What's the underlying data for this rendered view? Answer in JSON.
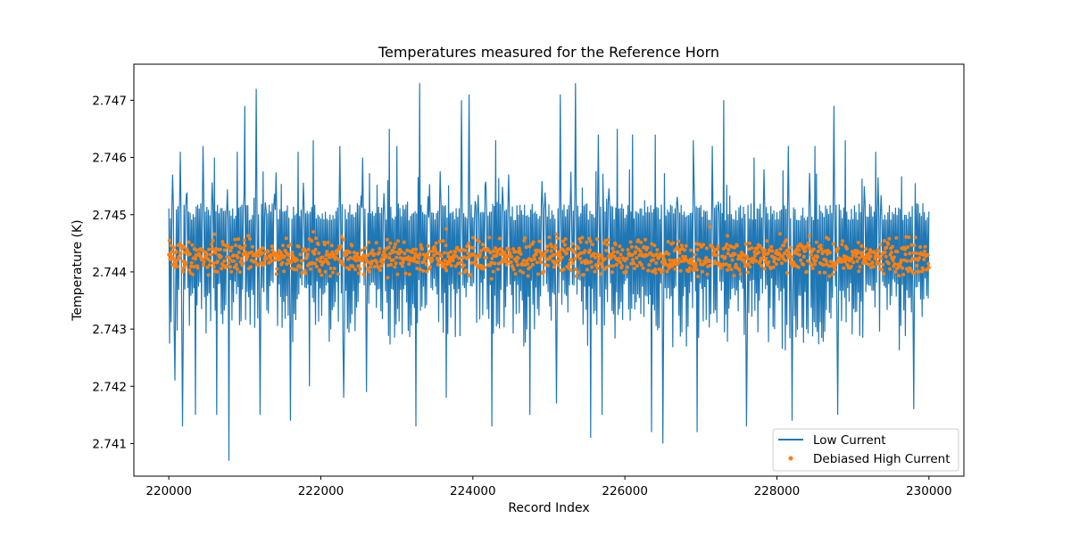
{
  "chart_data": {
    "type": "line",
    "title": "Temperatures measured for the Reference Horn",
    "xlabel": "Record Index",
    "ylabel": "Temperature (K)",
    "xlim": [
      219540,
      230460
    ],
    "ylim": [
      2.74043,
      2.74763
    ],
    "xticks": [
      220000,
      222000,
      224000,
      226000,
      228000,
      230000
    ],
    "xtick_labels": [
      "220000",
      "222000",
      "224000",
      "226000",
      "228000",
      "230000"
    ],
    "yticks": [
      2.741,
      2.742,
      2.743,
      2.744,
      2.745,
      2.746,
      2.747
    ],
    "ytick_labels": [
      "2.741",
      "2.742",
      "2.743",
      "2.744",
      "2.745",
      "2.746",
      "2.747"
    ],
    "grid": false,
    "legend_position": "lower right",
    "series": [
      {
        "name": "Low Current",
        "style": "line",
        "color": "#1f77b4",
        "x_range": [
          220000,
          230000
        ],
        "band": [
          2.7437,
          2.7452
        ],
        "typical_range": [
          2.7426,
          2.7458
        ],
        "max": 2.7473,
        "min": 2.7407,
        "spikes_high": [
          [
            220050,
            2.7457
          ],
          [
            220150,
            2.7461
          ],
          [
            220450,
            2.7462
          ],
          [
            220600,
            2.746
          ],
          [
            220900,
            2.7461
          ],
          [
            221000,
            2.7469
          ],
          [
            221150,
            2.7472
          ],
          [
            221700,
            2.7461
          ],
          [
            221900,
            2.7463
          ],
          [
            222250,
            2.7462
          ],
          [
            222550,
            2.746
          ],
          [
            222900,
            2.7465
          ],
          [
            223000,
            2.7462
          ],
          [
            223300,
            2.7473
          ],
          [
            223850,
            2.747
          ],
          [
            223950,
            2.7471
          ],
          [
            224300,
            2.7463
          ],
          [
            225150,
            2.7471
          ],
          [
            225350,
            2.7473
          ],
          [
            225650,
            2.7464
          ],
          [
            225900,
            2.7465
          ],
          [
            226100,
            2.7464
          ],
          [
            226400,
            2.7464
          ],
          [
            226900,
            2.7463
          ],
          [
            227150,
            2.7462
          ],
          [
            227300,
            2.747
          ],
          [
            227700,
            2.746
          ],
          [
            228150,
            2.7462
          ],
          [
            228500,
            2.7462
          ],
          [
            228750,
            2.7469
          ],
          [
            228900,
            2.7463
          ],
          [
            229300,
            2.7461
          ]
        ],
        "spikes_low": [
          [
            220080,
            2.7421
          ],
          [
            220180,
            2.7413
          ],
          [
            220350,
            2.7415
          ],
          [
            220630,
            2.7415
          ],
          [
            220790,
            2.7407
          ],
          [
            221200,
            2.7415
          ],
          [
            221600,
            2.7414
          ],
          [
            221850,
            2.742
          ],
          [
            222300,
            2.7418
          ],
          [
            222600,
            2.7419
          ],
          [
            223000,
            2.7416
          ],
          [
            223250,
            2.7413
          ],
          [
            223650,
            2.7418
          ],
          [
            224250,
            2.7413
          ],
          [
            224750,
            2.7415
          ],
          [
            225100,
            2.7417
          ],
          [
            225550,
            2.7411
          ],
          [
            225700,
            2.7415
          ],
          [
            226350,
            2.7412
          ],
          [
            226500,
            2.741
          ],
          [
            226950,
            2.7412
          ],
          [
            227150,
            2.7413
          ],
          [
            227600,
            2.7413
          ],
          [
            228200,
            2.7414
          ],
          [
            228800,
            2.7415
          ],
          [
            229300,
            2.7416
          ],
          [
            229800,
            2.7416
          ]
        ]
      },
      {
        "name": "Debiased High Current",
        "style": "scatter",
        "color": "#ff7f0e",
        "x_range": [
          220000,
          230000
        ],
        "center": 2.74426,
        "band": [
          2.74405,
          2.7445
        ],
        "typical_range": [
          2.74395,
          2.74462
        ],
        "max": 2.74479,
        "min": 2.7439,
        "outliers": [
          [
            220600,
            2.74466
          ],
          [
            221900,
            2.7447
          ],
          [
            223650,
            2.74475
          ],
          [
            225100,
            2.74466
          ],
          [
            227120,
            2.74479
          ],
          [
            227350,
            2.74463
          ],
          [
            228650,
            2.7446
          ]
        ]
      }
    ]
  }
}
